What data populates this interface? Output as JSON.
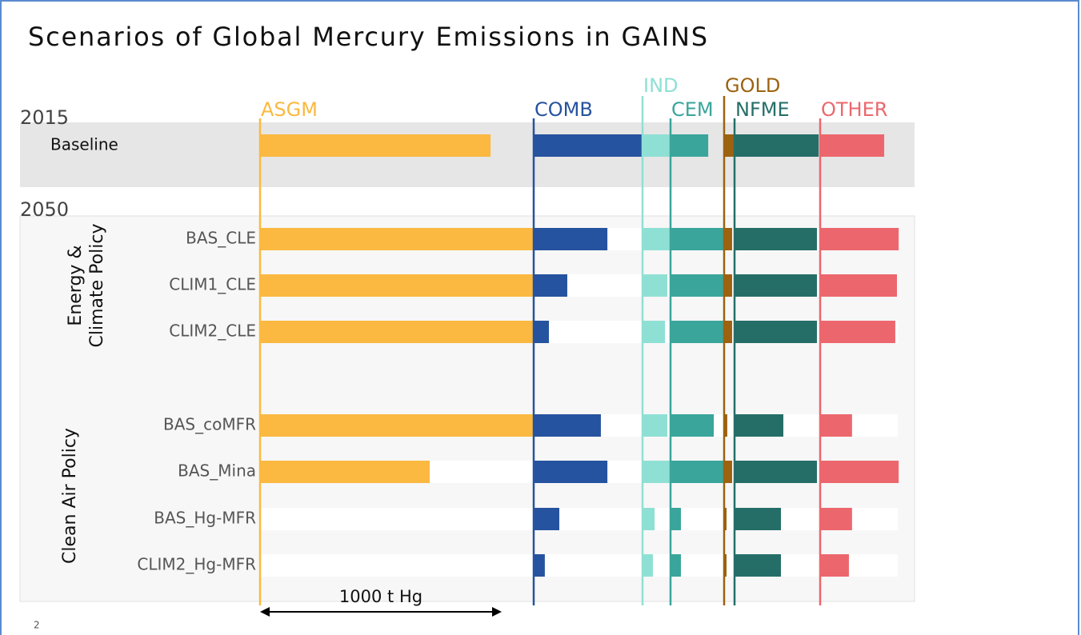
{
  "chart_data": {
    "type": "bar",
    "title": "Scenarios of Global Mercury Emissions in GAINS",
    "sections": [
      "2015",
      "2050"
    ],
    "group_labels": [
      [
        "Energy &",
        "Climate Policy"
      ],
      [
        "Clean Air Policy"
      ]
    ],
    "categories": [
      "Baseline",
      "BAS_CLE",
      "CLIM1_CLE",
      "CLIM2_CLE",
      "BAS_coMFR",
      "BAS_Mina",
      "BAS_Hg-MFR",
      "CLIM2_Hg-MFR"
    ],
    "series": [
      {
        "name": "ASGM",
        "color": "#fbb941",
        "values": [
          954,
          1132,
          1132,
          1132,
          1132,
          702,
          0,
          0
        ]
      },
      {
        "name": "COMB",
        "color": "#26539f",
        "values": [
          450,
          305,
          139,
          63,
          278,
          305,
          106,
          46
        ]
      },
      {
        "name": "IND",
        "color": "#8fe0d4",
        "values": [
          116,
          116,
          103,
          93,
          103,
          116,
          50,
          43
        ]
      },
      {
        "name": "CEM",
        "color": "#3aa59b",
        "values": [
          156,
          222,
          222,
          222,
          179,
          222,
          43,
          43
        ]
      },
      {
        "name": "GOLD",
        "color": "#9c6210",
        "values": [
          43,
          33,
          33,
          33,
          13,
          33,
          10,
          10
        ]
      },
      {
        "name": "NFME",
        "color": "#256e68",
        "values": [
          348,
          341,
          341,
          341,
          202,
          341,
          192,
          192
        ]
      },
      {
        "name": "OTHER",
        "color": "#ec676d",
        "values": [
          265,
          325,
          318,
          311,
          132,
          325,
          132,
          119
        ]
      }
    ],
    "scale_bar": {
      "value": 1000,
      "label": "1000 t Hg"
    },
    "page_number": "2"
  }
}
